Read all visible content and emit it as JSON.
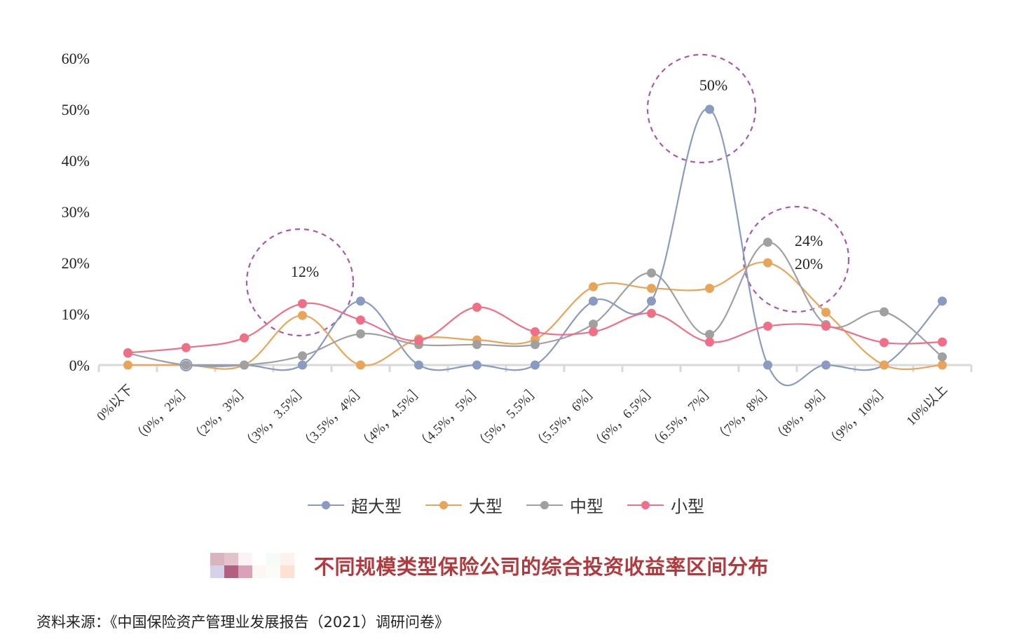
{
  "chart_data": {
    "type": "line",
    "title": "不同规模类型保险公司的综合投资收益率区间分布",
    "xlabel": "",
    "ylabel": "",
    "ylim": [
      0,
      60
    ],
    "yticks": [
      "0%",
      "10%",
      "20%",
      "30%",
      "40%",
      "50%",
      "60%"
    ],
    "grid": false,
    "legend_position": "bottom",
    "categories": [
      "0%以下",
      "（0%，2%］",
      "（2%，3%］",
      "（3%，3.5%］",
      "（3.5%，4%］",
      "（4%，4.5%］",
      "（4.5%，5%］",
      "（5%，5.5%］",
      "（5.5%，6%］",
      "（6%，6.5%］",
      "（6.5%，7%］",
      "（7%，8%］",
      "（8%，9%］",
      "（9%，10%］",
      "10%以上"
    ],
    "series": [
      {
        "name": "超大型",
        "color": "#8a9bc2",
        "values": [
          null,
          0,
          0,
          0,
          12.5,
          0,
          0,
          0,
          12.5,
          12.5,
          50,
          0,
          0,
          0,
          12.5
        ]
      },
      {
        "name": "大型",
        "color": "#e8a55a",
        "values": [
          0,
          0,
          0,
          9.7,
          0,
          5.1,
          4.9,
          5.0,
          15.3,
          15.0,
          15.0,
          20,
          10.3,
          0,
          0
        ]
      },
      {
        "name": "中型",
        "color": "#a0a0a3",
        "values": [
          2.3,
          0,
          0,
          1.8,
          6.1,
          4.0,
          4.0,
          4.0,
          8.0,
          18.0,
          6.0,
          24,
          7.9,
          10.4,
          1.6
        ]
      },
      {
        "name": "小型",
        "color": "#ee6f86",
        "values": [
          2.4,
          3.4,
          5.3,
          12,
          8.8,
          4.8,
          11.3,
          6.5,
          6.5,
          10.1,
          4.5,
          7.6,
          7.6,
          4.4,
          4.5
        ]
      }
    ],
    "annotations": [
      {
        "text": "12%",
        "category_index": 3
      },
      {
        "text": "50%",
        "category_index": 10
      },
      {
        "text": "24%",
        "category_index": 11
      },
      {
        "text": "20%",
        "category_index": 11
      }
    ]
  },
  "legend": [
    {
      "label": "超大型",
      "color": "#8a9bc2"
    },
    {
      "label": "大型",
      "color": "#e8a55a"
    },
    {
      "label": "中型",
      "color": "#a0a0a3"
    },
    {
      "label": "小型",
      "color": "#ee6f86"
    }
  ],
  "caption": {
    "text": "不同规模类型保险公司的综合投资收益率区间分布"
  },
  "source": {
    "text": "资料来源：《中国保险资产管理业发展报告（2021）调研问卷》"
  }
}
